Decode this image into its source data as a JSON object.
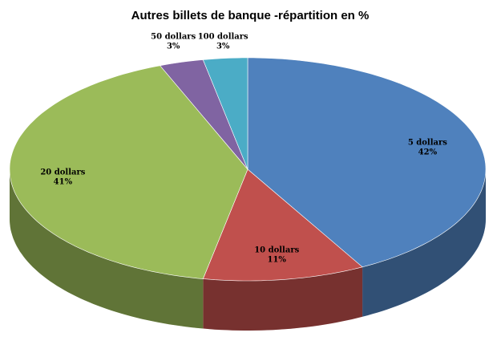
{
  "chart_data": {
    "type": "pie3d",
    "title": "Autres billets de banque -répartition en %",
    "categories": [
      "5 dollars",
      "10 dollars",
      "20 dollars",
      "50 dollars",
      "100 dollars"
    ],
    "values": [
      42,
      11,
      41,
      3,
      3
    ],
    "value_labels": [
      "42%",
      "11%",
      "41%",
      "3%",
      "3%"
    ],
    "colors": [
      "#4f81bd",
      "#c0504d",
      "#9bbb59",
      "#8064a2",
      "#4bacc6"
    ]
  }
}
